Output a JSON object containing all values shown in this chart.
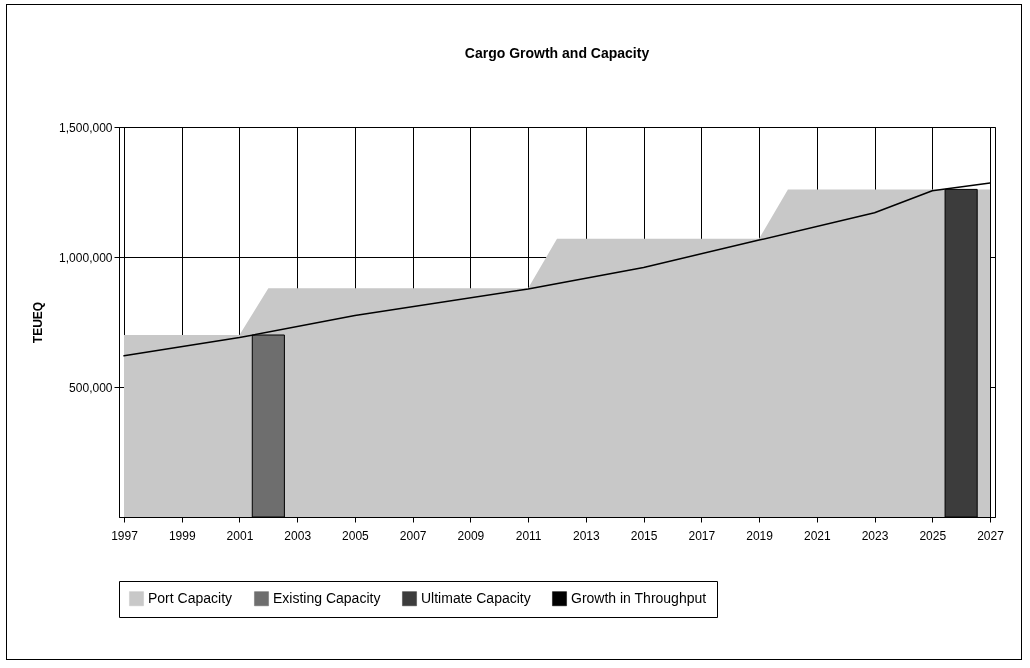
{
  "chart_data": {
    "type": "area",
    "title": "Cargo Growth and Capacity",
    "ylabel": "TEUEQ",
    "xlim": [
      1997,
      2027
    ],
    "xticks": [
      1997,
      1999,
      2001,
      2003,
      2005,
      2007,
      2009,
      2011,
      2013,
      2015,
      2017,
      2019,
      2021,
      2023,
      2025,
      2027
    ],
    "ylim": [
      0,
      1500000
    ],
    "yticks": [
      {
        "value": 500000,
        "label": "500,000"
      },
      {
        "value": 1000000,
        "label": "1,000,000"
      },
      {
        "value": 1500000,
        "label": "1,500,000"
      }
    ],
    "grid": true,
    "legend": "bottom",
    "series": [
      {
        "name": "Port Capacity",
        "color": "#c8c8c8",
        "x": [
          1997,
          2001,
          2002,
          2011,
          2012,
          2019,
          2020,
          2027
        ],
        "values": [
          700000,
          700000,
          880000,
          880000,
          1070000,
          1070000,
          1260000,
          1260000
        ]
      },
      {
        "name": "Existing Capacity",
        "type": "bar",
        "color": "#6e6e6e",
        "x": [
          2002
        ],
        "values": [
          700000
        ]
      },
      {
        "name": "Ultimate Capacity",
        "type": "bar",
        "color": "#3c3c3c",
        "x": [
          2026
        ],
        "values": [
          1260000
        ]
      },
      {
        "name": "Growth in Throughput",
        "type": "line",
        "color": "#000000",
        "x": [
          1997,
          2001,
          2005,
          2011,
          2015,
          2019,
          2023,
          2025,
          2027
        ],
        "values": [
          620000,
          690000,
          775000,
          877000,
          960000,
          1065000,
          1170000,
          1255000,
          1285000
        ]
      }
    ]
  }
}
